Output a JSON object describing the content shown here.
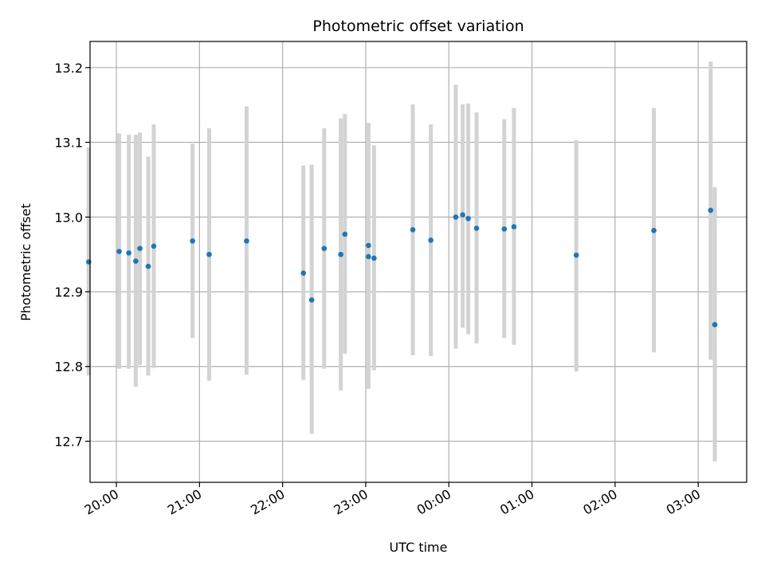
{
  "chart_data": {
    "type": "scatter",
    "title": "Photometric offset variation",
    "xlabel": "UTC time",
    "ylabel": "Photometric offset",
    "grid": true,
    "legend": "none",
    "x_ticks": [
      "20:00",
      "21:00",
      "22:00",
      "23:00",
      "00:00",
      "01:00",
      "02:00",
      "03:00"
    ],
    "y_ticks": [
      "12.7",
      "12.8",
      "12.9",
      "13.0",
      "13.1",
      "13.2"
    ],
    "xlim": [
      "19:41",
      "03:35"
    ],
    "ylim": [
      12.645,
      13.235
    ],
    "colors": {
      "points": "#1f77b4",
      "errorbars": "#d3d3d3",
      "grid": "#b0b0b0"
    },
    "points": [
      {
        "time": "19:40",
        "y": 12.94,
        "err_low": 12.788,
        "err_high": 13.093
      },
      {
        "time": "20:02",
        "y": 12.954,
        "err_low": 12.797,
        "err_high": 13.112
      },
      {
        "time": "20:09",
        "y": 12.952,
        "err_low": 12.797,
        "err_high": 13.11
      },
      {
        "time": "20:14",
        "y": 12.941,
        "err_low": 12.773,
        "err_high": 13.11
      },
      {
        "time": "20:17",
        "y": 12.958,
        "err_low": 12.802,
        "err_high": 13.113
      },
      {
        "time": "20:23",
        "y": 12.934,
        "err_low": 12.788,
        "err_high": 13.081
      },
      {
        "time": "20:27",
        "y": 12.961,
        "err_low": 12.798,
        "err_high": 13.124
      },
      {
        "time": "20:55",
        "y": 12.968,
        "err_low": 12.838,
        "err_high": 13.098
      },
      {
        "time": "21:07",
        "y": 12.95,
        "err_low": 12.781,
        "err_high": 13.119
      },
      {
        "time": "21:34",
        "y": 12.968,
        "err_low": 12.789,
        "err_high": 13.148
      },
      {
        "time": "22:15",
        "y": 12.925,
        "err_low": 12.782,
        "err_high": 13.069
      },
      {
        "time": "22:21",
        "y": 12.889,
        "err_low": 12.71,
        "err_high": 13.07
      },
      {
        "time": "22:30",
        "y": 12.958,
        "err_low": 12.797,
        "err_high": 13.119
      },
      {
        "time": "22:42",
        "y": 12.95,
        "err_low": 12.768,
        "err_high": 13.132
      },
      {
        "time": "22:45",
        "y": 12.977,
        "err_low": 12.817,
        "err_high": 13.138
      },
      {
        "time": "23:02",
        "y": 12.962,
        "err_low": 12.77,
        "err_high": 13.126
      },
      {
        "time": "23:02",
        "y": 12.947,
        "err_low": 12.798,
        "err_high": 13.096
      },
      {
        "time": "23:06",
        "y": 12.945,
        "err_low": 12.795,
        "err_high": 13.096
      },
      {
        "time": "23:34",
        "y": 12.983,
        "err_low": 12.815,
        "err_high": 13.151
      },
      {
        "time": "23:47",
        "y": 12.969,
        "err_low": 12.814,
        "err_high": 13.124
      },
      {
        "time": "00:05",
        "y": 13.0,
        "err_low": 12.824,
        "err_high": 13.177
      },
      {
        "time": "00:10",
        "y": 13.003,
        "err_low": 12.852,
        "err_high": 13.151
      },
      {
        "time": "00:14",
        "y": 12.998,
        "err_low": 12.843,
        "err_high": 13.152
      },
      {
        "time": "00:20",
        "y": 12.985,
        "err_low": 12.831,
        "err_high": 13.14
      },
      {
        "time": "00:40",
        "y": 12.984,
        "err_low": 12.838,
        "err_high": 13.131
      },
      {
        "time": "00:47",
        "y": 12.987,
        "err_low": 12.829,
        "err_high": 13.146
      },
      {
        "time": "01:32",
        "y": 12.949,
        "err_low": 12.793,
        "err_high": 13.103
      },
      {
        "time": "02:28",
        "y": 12.982,
        "err_low": 12.819,
        "err_high": 13.146
      },
      {
        "time": "03:09",
        "y": 13.009,
        "err_low": 12.809,
        "err_high": 13.208
      },
      {
        "time": "03:12",
        "y": 12.856,
        "err_low": 12.673,
        "err_high": 13.04
      }
    ]
  }
}
